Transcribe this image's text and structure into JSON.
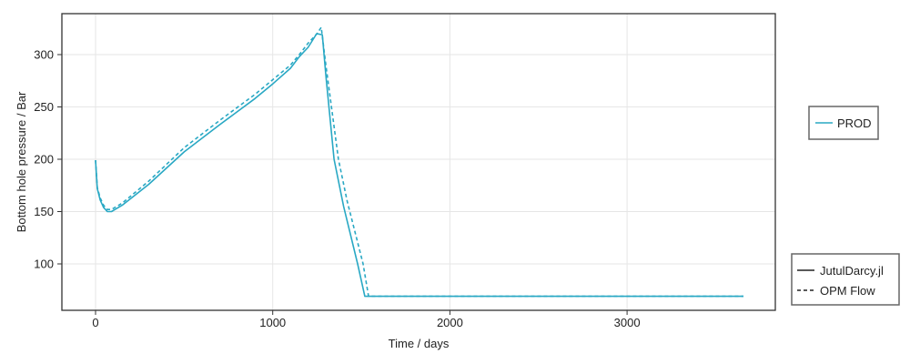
{
  "chart_data": {
    "type": "line",
    "xlabel": "Time / days",
    "ylabel": "Bottom hole pressure / Bar",
    "xlim": [
      -180,
      3850
    ],
    "ylim": [
      56,
      340
    ],
    "xticks": [
      0,
      1000,
      2000,
      3000
    ],
    "yticks": [
      100,
      150,
      200,
      250,
      300
    ],
    "grid": true,
    "color": "#29a8c4",
    "series": [
      {
        "name": "PROD",
        "source": "JutulDarcy.jl",
        "style": "solid",
        "x": [
          0,
          10,
          26,
          45,
          67,
          90,
          150,
          300,
          500,
          700,
          900,
          1000,
          1100,
          1150,
          1200,
          1248,
          1280,
          1300,
          1346,
          1400,
          1479,
          1520,
          3657
        ],
        "y": [
          199,
          172,
          161,
          154,
          150,
          150,
          156,
          176,
          207,
          233,
          258,
          272,
          287,
          298,
          307,
          320,
          319,
          280,
          200,
          155,
          100,
          69,
          69
        ]
      },
      {
        "name": "PROD",
        "source": "OPM Flow",
        "style": "dashed",
        "x": [
          0,
          10,
          26,
          45,
          67,
          90,
          150,
          300,
          500,
          700,
          900,
          1000,
          1100,
          1150,
          1200,
          1250,
          1274,
          1300,
          1371,
          1420,
          1510,
          1541,
          3657
        ],
        "y": [
          199,
          173,
          163,
          156,
          152,
          152,
          158,
          179,
          211,
          237,
          262,
          276,
          290,
          300,
          311,
          320,
          326,
          290,
          200,
          160,
          100,
          69,
          69
        ]
      }
    ],
    "legends": [
      {
        "position": "right",
        "entries": [
          {
            "label": "PROD",
            "style": "solid",
            "color": "#29a8c4"
          }
        ]
      },
      {
        "position": "bottom-right",
        "entries": [
          {
            "label": "JutulDarcy.jl",
            "style": "solid",
            "color": "#222222"
          },
          {
            "label": "OPM Flow",
            "style": "dashed",
            "color": "#222222"
          }
        ]
      }
    ]
  }
}
